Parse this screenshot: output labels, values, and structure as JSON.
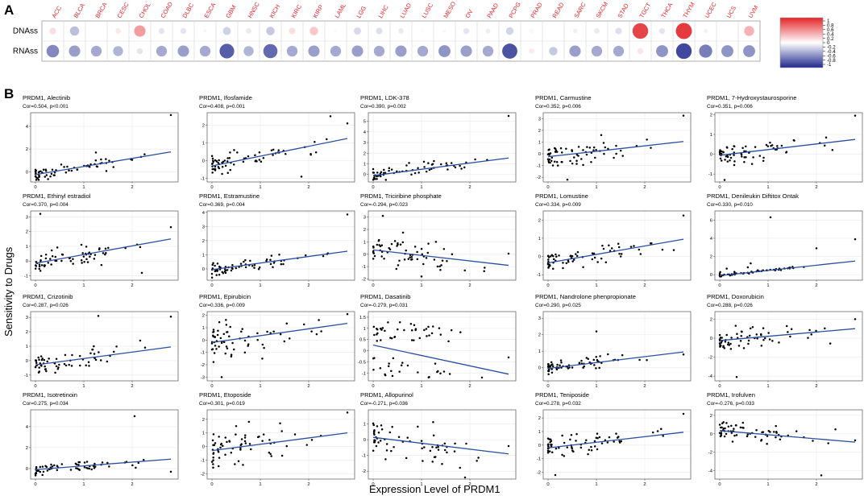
{
  "panel_a_letter": "A",
  "panel_b_letter": "B",
  "shared_ylabel": "Sensitivity to Drugs",
  "shared_xlabel": "Expression Level of PRDM1",
  "colors": {
    "line": "#2a4fa0",
    "point": "#000000",
    "panel_border": "#555555",
    "grid": "#ebebeb",
    "red_label": "#e8222a"
  },
  "chart_data": [
    {
      "type": "heatmap",
      "title": "",
      "columns": [
        "ACC",
        "BLCA",
        "BRCA",
        "CESC",
        "CHOL",
        "COAD",
        "DLBC",
        "ESCA",
        "GBM",
        "HNSC",
        "KICH",
        "KIRC",
        "KIRP",
        "LAML",
        "LGG",
        "LIHC",
        "LUAD",
        "LUSC",
        "MESO",
        "OV",
        "PAAD",
        "PCPG",
        "PRAD",
        "READ",
        "SARC",
        "SKCM",
        "STAD",
        "TGCT",
        "THCA",
        "THYM",
        "UCEC",
        "UCS",
        "UVM"
      ],
      "rows": [
        "DNAss",
        "RNAss"
      ],
      "values": [
        [
          0.15,
          -0.3,
          0.0,
          0.1,
          0.45,
          -0.12,
          -0.12,
          -0.04,
          -0.22,
          -0.1,
          -0.25,
          0.15,
          0.25,
          -0.03,
          -0.18,
          -0.15,
          -0.1,
          0.03,
          -0.04,
          -0.12,
          -0.08,
          -0.2,
          0.05,
          0.0,
          -0.07,
          -0.1,
          -0.15,
          0.85,
          -0.12,
          0.9,
          -0.06,
          0.0,
          0.35
        ],
        [
          -0.55,
          -0.45,
          -0.4,
          -0.35,
          -0.12,
          -0.4,
          -0.45,
          -0.4,
          -0.75,
          -0.35,
          -0.7,
          -0.4,
          -0.45,
          -0.4,
          -0.45,
          -0.4,
          -0.45,
          -0.4,
          -0.5,
          -0.45,
          -0.4,
          -0.8,
          0.1,
          -0.25,
          -0.45,
          -0.4,
          -0.4,
          0.12,
          -0.5,
          -0.85,
          -0.6,
          -0.5,
          -0.5
        ]
      ],
      "colorbar_ticks": [
        "1",
        "0.8",
        "0.6",
        "0.4",
        "0.2",
        "0",
        "-0.2",
        "-0.4",
        "-0.6",
        "-0.8",
        "-1"
      ],
      "range": [
        -1,
        1
      ]
    },
    {
      "type": "scatter",
      "title": "PRDM1, Alectinib",
      "subtitle": "Cor=0.504, p<0.001",
      "xticks": [
        0,
        1,
        2
      ],
      "yticks": [
        0,
        2,
        4
      ],
      "xlim": [
        -0.1,
        2.95
      ],
      "ylim": [
        -0.9,
        5.2
      ],
      "line": [
        [
          0,
          -0.25
        ],
        [
          2.8,
          1.75
        ]
      ],
      "seed": 11,
      "shape": "lowtail",
      "outliers": [
        [
          2.8,
          5.0
        ],
        [
          1.25,
          1.7
        ],
        [
          2.0,
          1.05
        ]
      ]
    },
    {
      "type": "scatter",
      "title": "PRDM1, Ifosfamide",
      "subtitle": "Cor=0.408, p=0.001",
      "xticks": [
        0,
        1,
        2
      ],
      "yticks": [
        -1,
        0,
        1,
        2
      ],
      "xlim": [
        -0.1,
        2.95
      ],
      "ylim": [
        -1.2,
        2.7
      ],
      "line": [
        [
          0,
          -0.3
        ],
        [
          2.8,
          1.25
        ]
      ],
      "seed": 12,
      "shape": "spread",
      "outliers": [
        [
          2.45,
          2.5
        ],
        [
          2.8,
          2.1
        ],
        [
          1.85,
          -0.9
        ]
      ]
    },
    {
      "type": "scatter",
      "title": "PRDM1, LDK-378",
      "subtitle": "Cor=0.390, p=0.002",
      "xticks": [
        0,
        1,
        2
      ],
      "yticks": [
        0,
        1,
        2,
        3,
        4,
        5
      ],
      "xlim": [
        -0.1,
        2.95
      ],
      "ylim": [
        -0.7,
        5.8
      ],
      "line": [
        [
          0,
          -0.1
        ],
        [
          2.8,
          1.55
        ]
      ],
      "seed": 13,
      "shape": "lowtail",
      "outliers": [
        [
          2.8,
          5.5
        ],
        [
          1.05,
          1.2
        ]
      ]
    },
    {
      "type": "scatter",
      "title": "PRDM1, Carmustine",
      "subtitle": "Cor=0.352, p=0.006",
      "xticks": [
        0,
        1,
        2
      ],
      "yticks": [
        -2,
        -1,
        0,
        1,
        2,
        3
      ],
      "xlim": [
        -0.1,
        2.95
      ],
      "ylim": [
        -2.4,
        3.5
      ],
      "line": [
        [
          0,
          -0.25
        ],
        [
          2.8,
          1.05
        ]
      ],
      "seed": 14,
      "shape": "spread",
      "outliers": [
        [
          2.8,
          3.25
        ],
        [
          1.1,
          1.6
        ],
        [
          0.4,
          -2.2
        ]
      ]
    },
    {
      "type": "scatter",
      "title": "PRDM1, 7-Hydroxystaurosporine",
      "subtitle": "Cor=0.351, p=0.006",
      "xticks": [
        0,
        1,
        2
      ],
      "yticks": [
        -1,
        0,
        1,
        2
      ],
      "xlim": [
        -0.1,
        2.95
      ],
      "ylim": [
        -1.4,
        2.1
      ],
      "line": [
        [
          0,
          -0.05
        ],
        [
          2.8,
          0.75
        ]
      ],
      "seed": 15,
      "shape": "spread",
      "outliers": [
        [
          2.8,
          1.95
        ],
        [
          2.2,
          0.85
        ],
        [
          0.1,
          -1.3
        ]
      ]
    },
    {
      "type": "scatter",
      "title": "PRDM1, Ethinyl estradiol",
      "subtitle": "Cor=0.370, p=0.004",
      "xticks": [
        0,
        1,
        2
      ],
      "yticks": [
        -1,
        0,
        1,
        2,
        3
      ],
      "xlim": [
        -0.1,
        2.95
      ],
      "ylim": [
        -1.3,
        3.4
      ],
      "line": [
        [
          0,
          -0.15
        ],
        [
          2.8,
          1.5
        ]
      ],
      "seed": 16,
      "shape": "spread",
      "outliers": [
        [
          0.1,
          3.2
        ],
        [
          2.8,
          2.3
        ],
        [
          2.2,
          -0.8
        ]
      ]
    },
    {
      "type": "scatter",
      "title": "PRDM1, Estramustine",
      "subtitle": "Cor=0.369, p=0.004",
      "xticks": [
        0,
        1,
        2
      ],
      "yticks": [
        0,
        1,
        2,
        3,
        4
      ],
      "xlim": [
        -0.1,
        2.95
      ],
      "ylim": [
        -0.8,
        4.1
      ],
      "line": [
        [
          0,
          -0.05
        ],
        [
          2.8,
          1.25
        ]
      ],
      "seed": 17,
      "shape": "lowtail",
      "outliers": [
        [
          2.8,
          3.85
        ],
        [
          2.3,
          0.9
        ]
      ]
    },
    {
      "type": "scatter",
      "title": "PRDM1, Triciribine phosphate",
      "subtitle": "Cor=-0.294, p=0.023",
      "xticks": [
        0,
        1,
        2
      ],
      "yticks": [
        -2,
        -1,
        0,
        1,
        2,
        3
      ],
      "xlim": [
        -0.1,
        2.95
      ],
      "ylim": [
        -2.1,
        3.5
      ],
      "line": [
        [
          0,
          0.35
        ],
        [
          2.8,
          -0.9
        ]
      ],
      "seed": 18,
      "shape": "wide",
      "outliers": [
        [
          2.8,
          0.05
        ],
        [
          1.0,
          -1.8
        ],
        [
          0.2,
          3.1
        ]
      ]
    },
    {
      "type": "scatter",
      "title": "PRDM1, Lomustine",
      "subtitle": "Cor=0.334, p=0.009",
      "xticks": [
        0,
        1,
        2
      ],
      "yticks": [
        -1,
        0,
        1,
        2
      ],
      "xlim": [
        -0.1,
        2.95
      ],
      "ylim": [
        -1.3,
        2.5
      ],
      "line": [
        [
          0,
          -0.35
        ],
        [
          2.8,
          0.95
        ]
      ],
      "seed": 19,
      "shape": "spread",
      "outliers": [
        [
          2.8,
          2.25
        ],
        [
          2.6,
          0.35
        ]
      ]
    },
    {
      "type": "scatter",
      "title": "PRDM1, Denileukin Diftitox Ontak",
      "subtitle": "Cor=0.330, p=0.010",
      "xticks": [
        0,
        1,
        2
      ],
      "yticks": [
        0,
        2,
        4,
        6
      ],
      "xlim": [
        -0.1,
        2.95
      ],
      "ylim": [
        -0.6,
        7.0
      ],
      "line": [
        [
          0,
          -0.1
        ],
        [
          2.8,
          1.5
        ]
      ],
      "seed": 20,
      "shape": "flat",
      "outliers": [
        [
          1.05,
          6.3
        ],
        [
          2.0,
          2.9
        ],
        [
          2.8,
          3.9
        ]
      ]
    },
    {
      "type": "scatter",
      "title": "PRDM1, Crizotinib",
      "subtitle": "Cor=0.287, p=0.026",
      "xticks": [
        0,
        1,
        2
      ],
      "yticks": [
        -1,
        0,
        1,
        2,
        3
      ],
      "xlim": [
        -0.1,
        2.95
      ],
      "ylim": [
        -1.4,
        3.4
      ],
      "line": [
        [
          0,
          -0.3
        ],
        [
          2.8,
          0.95
        ]
      ],
      "seed": 21,
      "shape": "spread",
      "outliers": [
        [
          1.3,
          3.1
        ],
        [
          2.8,
          3.05
        ]
      ]
    },
    {
      "type": "scatter",
      "title": "PRDM1, Epirubicin",
      "subtitle": "Cor=0.336, p=0.009",
      "xticks": [
        0,
        1,
        2
      ],
      "yticks": [
        -3,
        -2,
        -1,
        0,
        1,
        2
      ],
      "xlim": [
        -0.1,
        2.95
      ],
      "ylim": [
        -3.3,
        2.3
      ],
      "line": [
        [
          0,
          -0.2
        ],
        [
          2.8,
          1.35
        ]
      ],
      "seed": 22,
      "shape": "wide",
      "outliers": [
        [
          2.8,
          2.1
        ],
        [
          0.2,
          -3.0
        ]
      ]
    },
    {
      "type": "scatter",
      "title": "PRDM1, Dasatinib",
      "subtitle": "Cor=-0.279, p=0.031",
      "xticks": [
        0,
        1,
        2
      ],
      "yticks": [
        -1.0,
        -0.5,
        0.0,
        0.5,
        1.0,
        1.5
      ],
      "xlim": [
        -0.1,
        2.95
      ],
      "ylim": [
        -1.35,
        1.75
      ],
      "line": [
        [
          0,
          0.25
        ],
        [
          2.8,
          -1.05
        ]
      ],
      "seed": 23,
      "shape": "bimodal",
      "outliers": [
        [
          2.25,
          -1.2
        ],
        [
          2.8,
          -0.3
        ]
      ]
    },
    {
      "type": "scatter",
      "title": "PRDM1, Nandrolone phenpropionate",
      "subtitle": "Cor=0.290, p=0.025",
      "xticks": [
        0,
        1,
        2
      ],
      "yticks": [
        0,
        1,
        2,
        3
      ],
      "xlim": [
        -0.1,
        2.95
      ],
      "ylim": [
        -0.8,
        3.4
      ],
      "line": [
        [
          0,
          -0.05
        ],
        [
          2.8,
          0.95
        ]
      ],
      "seed": 24,
      "shape": "lowtail",
      "outliers": [
        [
          1.0,
          2.2
        ],
        [
          2.8,
          0.8
        ]
      ]
    },
    {
      "type": "scatter",
      "title": "PRDM1, Doxorubicin",
      "subtitle": "Cor=0.288, p=0.026",
      "xticks": [
        0,
        1,
        2
      ],
      "yticks": [
        -4,
        -2,
        0,
        2
      ],
      "xlim": [
        -0.1,
        2.95
      ],
      "ylim": [
        -4.5,
        2.8
      ],
      "line": [
        [
          0,
          -0.25
        ],
        [
          2.8,
          1.0
        ]
      ],
      "seed": 25,
      "shape": "spread",
      "outliers": [
        [
          0.35,
          -4.1
        ],
        [
          2.8,
          2.0
        ]
      ]
    },
    {
      "type": "scatter",
      "title": "PRDM1, Isotretinoin",
      "subtitle": "Cor=0.275, p=0.034",
      "xticks": [
        0,
        1,
        2
      ],
      "yticks": [
        0,
        2,
        4
      ],
      "xlim": [
        -0.1,
        2.95
      ],
      "ylim": [
        -1.0,
        5.6
      ],
      "line": [
        [
          0,
          -0.1
        ],
        [
          2.8,
          0.9
        ]
      ],
      "seed": 26,
      "shape": "lowtail",
      "outliers": [
        [
          2.05,
          5.0
        ],
        [
          2.8,
          -0.3
        ]
      ]
    },
    {
      "type": "scatter",
      "title": "PRDM1, Etoposide",
      "subtitle": "Cor=0.301, p=0.019",
      "xticks": [
        0,
        1,
        2
      ],
      "yticks": [
        -2,
        -1,
        0,
        1,
        2
      ],
      "xlim": [
        -0.1,
        2.95
      ],
      "ylim": [
        -2.4,
        2.7
      ],
      "line": [
        [
          0,
          -0.3
        ],
        [
          2.8,
          1.0
        ]
      ],
      "seed": 27,
      "shape": "wide",
      "outliers": [
        [
          2.8,
          2.5
        ],
        [
          0.5,
          1.5
        ]
      ]
    },
    {
      "type": "scatter",
      "title": "PRDM1, Allopurinol",
      "subtitle": "Cor=-0.271, p=0.036",
      "xticks": [
        0,
        1,
        2
      ],
      "yticks": [
        -2,
        -1,
        0,
        1
      ],
      "xlim": [
        -0.1,
        2.95
      ],
      "ylim": [
        -2.5,
        1.9
      ],
      "line": [
        [
          0,
          0.15
        ],
        [
          2.8,
          -0.9
        ]
      ],
      "seed": 28,
      "shape": "wide",
      "outliers": [
        [
          2.8,
          -0.4
        ],
        [
          1.9,
          -2.4
        ]
      ]
    },
    {
      "type": "scatter",
      "title": "PRDM1, Teniposide",
      "subtitle": "Cor=0.278, p=0.032",
      "xticks": [
        0,
        1,
        2
      ],
      "yticks": [
        -2,
        -1,
        0,
        1,
        2
      ],
      "xlim": [
        -0.1,
        2.95
      ],
      "ylim": [
        -2.5,
        2.6
      ],
      "line": [
        [
          0,
          -0.2
        ],
        [
          2.8,
          0.95
        ]
      ],
      "seed": 29,
      "shape": "spread",
      "outliers": [
        [
          2.8,
          2.3
        ],
        [
          0.15,
          -2.2
        ]
      ]
    },
    {
      "type": "scatter",
      "title": "PRDM1, Irofulven",
      "subtitle": "Cor=-0.276, p=0.033",
      "xticks": [
        0,
        1,
        2
      ],
      "yticks": [
        -4,
        -2,
        0,
        2
      ],
      "xlim": [
        -0.1,
        2.95
      ],
      "ylim": [
        -4.9,
        2.6
      ],
      "line": [
        [
          0,
          0.35
        ],
        [
          2.8,
          -0.9
        ]
      ],
      "seed": 30,
      "shape": "spread",
      "outliers": [
        [
          2.1,
          -4.5
        ],
        [
          2.8,
          -0.7
        ]
      ]
    }
  ]
}
